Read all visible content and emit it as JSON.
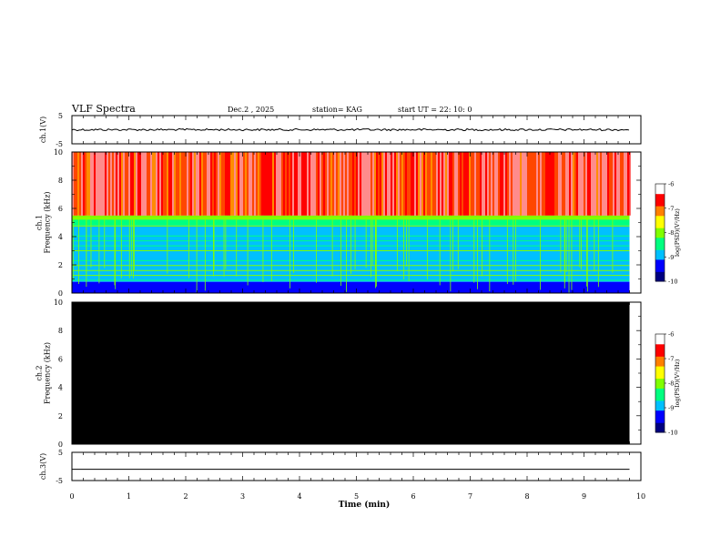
{
  "header": {
    "title": "VLF Spectra",
    "date": "Dec.2 , 2025",
    "station": "station= KAG",
    "start": "start UT =  22: 10: 0"
  },
  "colors": {
    "bg": "#ffffff",
    "ink": "#000000",
    "empty_panel": "#000000",
    "colormap": [
      "#000080",
      "#0000ff",
      "#00c0ff",
      "#00ff80",
      "#80ff00",
      "#ffff00",
      "#ff8000",
      "#ff0000",
      "#ffffff"
    ]
  },
  "chart_data": [
    {
      "type": "line",
      "name": "ch1-waveform",
      "ylabel": "ch.1(V)",
      "ylim": [
        -5,
        5
      ],
      "yticks": [
        "5",
        "-5"
      ],
      "xlim": [
        0,
        10
      ],
      "trace_level": 0.0,
      "note": "low-amplitude noise around 0 V"
    },
    {
      "type": "heatmap",
      "name": "ch1-spectrogram",
      "ylabel": "ch.1\nFrequency (kHz)",
      "ylim": [
        0,
        10
      ],
      "yticks": [
        "0",
        "2",
        "4",
        "6",
        "8",
        "10"
      ],
      "xlim": [
        0,
        10
      ],
      "data_end_min": 9.8,
      "bands_khz": [
        {
          "from": 0.0,
          "to": 0.8,
          "level": -9.3
        },
        {
          "from": 0.8,
          "to": 4.8,
          "level": -9.0
        },
        {
          "from": 4.8,
          "to": 5.5,
          "level": -8.0
        },
        {
          "from": 5.5,
          "to": 10.0,
          "level": -6.6
        }
      ],
      "colorbar": {
        "label": "log(PSD)(V²/Hz)",
        "ticks": [
          "-6",
          "-7",
          "-8",
          "-9",
          "-10"
        ],
        "range": [
          -10,
          -6
        ]
      }
    },
    {
      "type": "heatmap",
      "name": "ch2-spectrogram",
      "ylabel": "ch.2\nFrequency (kHz)",
      "ylim": [
        0,
        10
      ],
      "yticks": [
        "0",
        "2",
        "4",
        "6",
        "8",
        "10"
      ],
      "xlim": [
        0,
        10
      ],
      "data_end_min": 9.8,
      "note": "no data (black)",
      "colorbar": {
        "label": "log(PSD)(V²/Hz)",
        "ticks": [
          "-6",
          "-7",
          "-8",
          "-9",
          "-10"
        ],
        "range": [
          -10,
          -6
        ]
      }
    },
    {
      "type": "line",
      "name": "ch3-waveform",
      "ylabel": "ch.3(V)",
      "ylim": [
        -5,
        5
      ],
      "yticks": [
        "5",
        "-5"
      ],
      "xlim": [
        0,
        10
      ],
      "trace_level": -1.0
    }
  ],
  "xaxis": {
    "label": "Time (min)",
    "ticks": [
      "0",
      "1",
      "2",
      "3",
      "4",
      "5",
      "6",
      "7",
      "8",
      "9",
      "10"
    ]
  }
}
